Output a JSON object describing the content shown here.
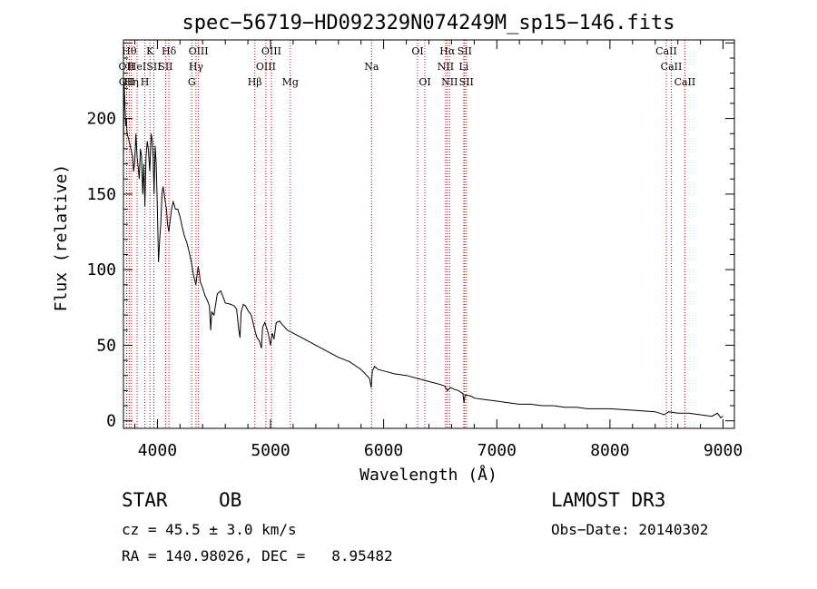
{
  "chart_data": {
    "type": "line",
    "title": "spec−56719−HD092329N074249M_sp15−146.fits",
    "xlabel": "Wavelength (Å)",
    "ylabel": "Flux (relative)",
    "xlim": [
      3700,
      9100
    ],
    "ylim": [
      -5,
      252
    ],
    "xticks": [
      4000,
      5000,
      6000,
      7000,
      8000,
      9000
    ],
    "yticks": [
      0,
      50,
      100,
      150,
      200
    ],
    "series": [
      {
        "name": "spectrum",
        "x": [
          3700,
          3705,
          3712,
          3720,
          3726,
          3732,
          3740,
          3750,
          3765,
          3780,
          3790,
          3800,
          3810,
          3820,
          3830,
          3840,
          3850,
          3860,
          3870,
          3880,
          3889,
          3900,
          3910,
          3920,
          3933,
          3945,
          3955,
          3962,
          3970,
          3980,
          3990,
          4000,
          4010,
          4020,
          4030,
          4040,
          4050,
          4060,
          4070,
          4080,
          4090,
          4101,
          4112,
          4125,
          4140,
          4160,
          4180,
          4200,
          4220,
          4240,
          4260,
          4280,
          4300,
          4320,
          4340,
          4350,
          4360,
          4370,
          4380,
          4400,
          4420,
          4440,
          4460,
          4471,
          4480,
          4500,
          4530,
          4560,
          4600,
          4650,
          4680,
          4700,
          4720,
          4730,
          4740,
          4760,
          4780,
          4800,
          4830,
          4861,
          4880,
          4900,
          4920,
          4930,
          4950,
          4980,
          5000,
          5015,
          5030,
          5050,
          5080,
          5100,
          5150,
          5200,
          5300,
          5400,
          5500,
          5600,
          5700,
          5800,
          5850,
          5875,
          5890,
          5900,
          5920,
          5950,
          6000,
          6100,
          6200,
          6300,
          6400,
          6450,
          6500,
          6540,
          6563,
          6590,
          6620,
          6660,
          6680,
          6700,
          6710,
          6720,
          6740,
          6780,
          6800,
          6900,
          7000,
          7100,
          7200,
          7300,
          7400,
          7500,
          7600,
          7700,
          7800,
          7900,
          8000,
          8200,
          8400,
          8480,
          8500,
          8520,
          8600,
          8700,
          8800,
          8900,
          8950,
          8980,
          9000
        ],
        "y": [
          170,
          225,
          210,
          195,
          200,
          190,
          188,
          185,
          180,
          175,
          165,
          172,
          190,
          175,
          168,
          160,
          180,
          175,
          150,
          170,
          142,
          175,
          185,
          180,
          165,
          190,
          185,
          175,
          150,
          182,
          170,
          140,
          105,
          120,
          130,
          150,
          155,
          150,
          145,
          140,
          130,
          125,
          132,
          140,
          145,
          140,
          140,
          135,
          128,
          122,
          118,
          112,
          105,
          96,
          90,
          96,
          102,
          98,
          92,
          88,
          83,
          80,
          76,
          60,
          72,
          70,
          84,
          86,
          78,
          77,
          76,
          74,
          60,
          55,
          72,
          77,
          76,
          73,
          70,
          60,
          55,
          53,
          48,
          62,
          65,
          58,
          50,
          58,
          54,
          65,
          66,
          64,
          60,
          58,
          54,
          50,
          46,
          42,
          39,
          34,
          30,
          28,
          22,
          33,
          36,
          34,
          33,
          31,
          30,
          28,
          26,
          25,
          24,
          23,
          20,
          22,
          21,
          20,
          19,
          18,
          12,
          17,
          17,
          16,
          15,
          14,
          13,
          12,
          11,
          11,
          10,
          10,
          9,
          9,
          8,
          8,
          8,
          7,
          6,
          4,
          5,
          6,
          5,
          5,
          4,
          3,
          5,
          2,
          3
        ]
      }
    ],
    "lines": [
      {
        "wave": 3727,
        "row": 1,
        "label": "OII"
      },
      {
        "wave": 3729,
        "row": 2,
        "label": "OII"
      },
      {
        "wave": 3751,
        "row": 0,
        "label": "Hθ"
      },
      {
        "wave": 3771,
        "row": 2,
        "label": "Hη"
      },
      {
        "wave": 3820,
        "row": 1,
        "label": "HeI"
      },
      {
        "wave": 3889,
        "row": 2,
        "label": "H"
      },
      {
        "wave": 3934,
        "row": 0,
        "label": "K"
      },
      {
        "wave": 3969,
        "row": 1,
        "label": "SII"
      },
      {
        "wave": 4072,
        "row": 1,
        "label": "SII"
      },
      {
        "wave": 4102,
        "row": 0,
        "label": "Hδ"
      },
      {
        "wave": 4304,
        "row": 2,
        "label": "G"
      },
      {
        "wave": 4341,
        "row": 1,
        "label": "Hγ"
      },
      {
        "wave": 4363,
        "row": 0,
        "label": "OIII"
      },
      {
        "wave": 4861,
        "row": 2,
        "label": "Hβ"
      },
      {
        "wave": 4959,
        "row": 1,
        "label": "OIII"
      },
      {
        "wave": 5007,
        "row": 0,
        "label": "OIII"
      },
      {
        "wave": 5175,
        "row": 2,
        "label": "Mg"
      },
      {
        "wave": 5893,
        "row": 1,
        "label": "Na"
      },
      {
        "wave": 6300,
        "row": 0,
        "label": "OI"
      },
      {
        "wave": 6364,
        "row": 2,
        "label": "OI"
      },
      {
        "wave": 6548,
        "row": 1,
        "label": "NII"
      },
      {
        "wave": 6563,
        "row": 0,
        "label": "Hα"
      },
      {
        "wave": 6583,
        "row": 2,
        "label": "NII"
      },
      {
        "wave": 6708,
        "row": 1,
        "label": "Li"
      },
      {
        "wave": 6716,
        "row": 0,
        "label": "SII"
      },
      {
        "wave": 6731,
        "row": 2,
        "label": "SII"
      },
      {
        "wave": 8498,
        "row": 0,
        "label": "CaII"
      },
      {
        "wave": 8542,
        "row": 1,
        "label": "CaII"
      },
      {
        "wave": 8662,
        "row": 2,
        "label": "CaII"
      }
    ]
  },
  "info": {
    "class": "STAR",
    "subclass": "OB",
    "cz": "cz = 45.5 ± 3.0 km/s",
    "radec": "RA = 140.98026, DEC =   8.95482",
    "survey": "LAMOST DR3",
    "obs_date": "Obs−Date: 20140302"
  },
  "colors": {
    "line_marker": "#cc0000",
    "spectrum": "#000000"
  }
}
